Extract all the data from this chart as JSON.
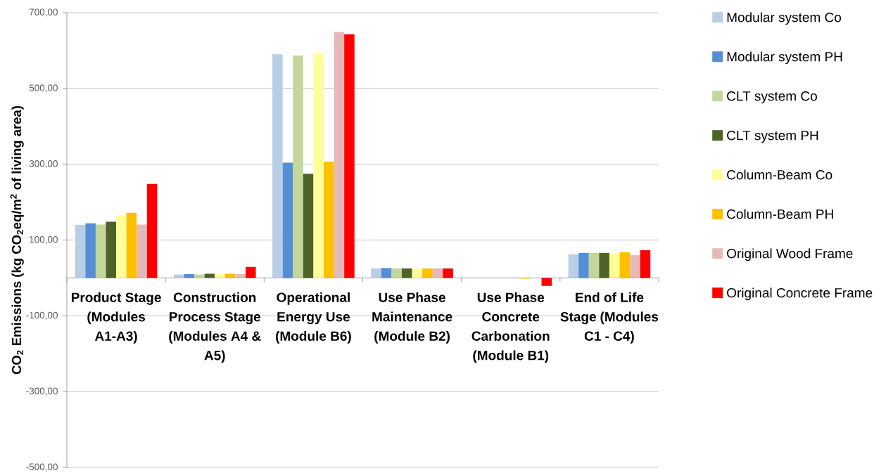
{
  "chart_data": {
    "type": "bar",
    "ylabel": "CO$_{2}$ Emissions (kg CO$_{2}$eq/m$^{2}$ of living area)",
    "categories": [
      "Product Stage (Modules A1-A3)",
      "Construction Process Stage (Modules A4 & A5)",
      "Operational Energy Use (Module B6)",
      "Use Phase Maintenance (Module B2)",
      "Use Phase Concrete Carbonation (Module B1)",
      "End of Life Stage (Modules C1 - C4)"
    ],
    "series": [
      {
        "name": "Modular system Co",
        "color": "#b9cde5",
        "values": [
          140,
          9,
          590,
          25,
          0,
          62
        ]
      },
      {
        "name": "Modular system PH",
        "color": "#558ed5",
        "values": [
          144,
          10,
          304,
          26,
          0,
          66
        ]
      },
      {
        "name": "CLT system Co",
        "color": "#c3d69b",
        "values": [
          141,
          9,
          587,
          25,
          0,
          66
        ]
      },
      {
        "name": "CLT system PH",
        "color": "#4f6228",
        "values": [
          148,
          11,
          275,
          25,
          0,
          66
        ]
      },
      {
        "name": "Column-Beam Co",
        "color": "#ffff99",
        "values": [
          165,
          10,
          593,
          25,
          0,
          64
        ]
      },
      {
        "name": "Column-Beam PH",
        "color": "#ffc000",
        "values": [
          172,
          11,
          307,
          25,
          -2,
          68
        ]
      },
      {
        "name": "Original Wood Frame",
        "color": "#e6b9b8",
        "values": [
          141,
          10,
          649,
          25,
          0,
          60
        ]
      },
      {
        "name": "Original Concrete Frame",
        "color": "#ff0000",
        "values": [
          248,
          29,
          643,
          25,
          -21,
          73
        ]
      }
    ],
    "ylim": [
      -500,
      700
    ],
    "yticks": [
      {
        "value": -500,
        "label": "-500,00"
      },
      {
        "value": -300,
        "label": "-300,00"
      },
      {
        "value": -100,
        "label": "-100,00"
      },
      {
        "value": 100,
        "label": "100,00"
      },
      {
        "value": 300,
        "label": "300,00"
      },
      {
        "value": 500,
        "label": "500,00"
      },
      {
        "value": 700,
        "label": "700,00"
      }
    ],
    "grid": "y",
    "legend": "right"
  }
}
